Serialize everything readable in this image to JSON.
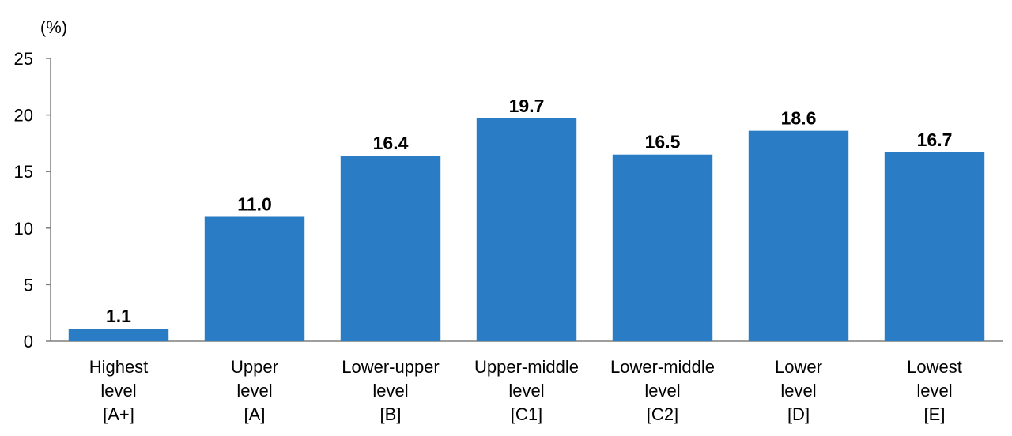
{
  "chart_data": {
    "type": "bar",
    "title": "",
    "xlabel": "",
    "ylabel": "(%)",
    "ylim": [
      0,
      25
    ],
    "yticks": [
      0,
      5,
      10,
      15,
      20,
      25
    ],
    "grid": false,
    "legend": "none",
    "bar_color": "#2a7dc4",
    "categories": [
      [
        "Highest",
        "level",
        "[A+]"
      ],
      [
        "Upper",
        "level",
        "[A]"
      ],
      [
        "Lower-upper",
        "level",
        "[B]"
      ],
      [
        "Upper-middle",
        "level",
        "[C1]"
      ],
      [
        "Lower-middle",
        "level",
        "[C2]"
      ],
      [
        "Lower",
        "level",
        "[D]"
      ],
      [
        "Lowest",
        "level",
        "[E]"
      ]
    ],
    "values": [
      1.1,
      11.0,
      16.4,
      19.7,
      16.5,
      18.6,
      16.7
    ],
    "value_labels": [
      "1.1",
      "11.0",
      "16.4",
      "19.7",
      "16.5",
      "18.6",
      "16.7"
    ]
  }
}
